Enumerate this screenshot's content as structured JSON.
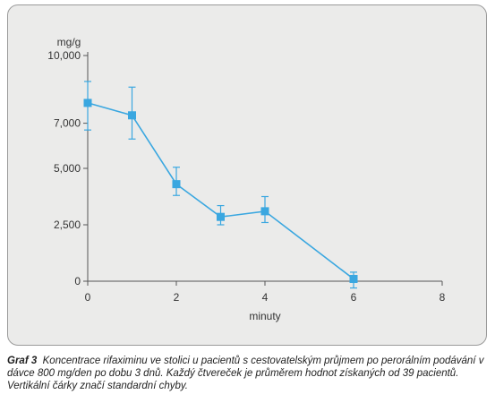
{
  "chart_data": {
    "type": "line",
    "ylabel": "mg/g",
    "xlabel": "minuty",
    "x_ticks": [
      0,
      2,
      4,
      6,
      8
    ],
    "y_ticks": [
      0,
      2500,
      5000,
      7000,
      10000
    ],
    "y_tick_labels": [
      "0",
      "2,500",
      "5,000",
      "7,000",
      "10,000"
    ],
    "xlim": [
      0,
      8
    ],
    "ylim": [
      0,
      10000
    ],
    "series": [
      {
        "x": [
          0,
          1,
          2,
          3,
          4,
          6
        ],
        "y": [
          7900,
          7350,
          4300,
          2850,
          3100,
          100
        ],
        "err_low": [
          6700,
          6300,
          3800,
          2500,
          2600,
          -300
        ],
        "err_high": [
          8850,
          8600,
          5050,
          3350,
          3750,
          400
        ],
        "color": "#3aa7e0"
      }
    ],
    "grid": false
  },
  "caption": {
    "lead": "Graf 3",
    "text": "Koncentrace rifaximinu ve stolici u pacientů s cestovatelským průjmem po perorálním podávání v dávce 800 mg/den po dobu 3 dnů. Každý čtvereček je průměrem hodnot získaných od 39 pacientů. Vertikální čárky značí standardní chyby."
  }
}
